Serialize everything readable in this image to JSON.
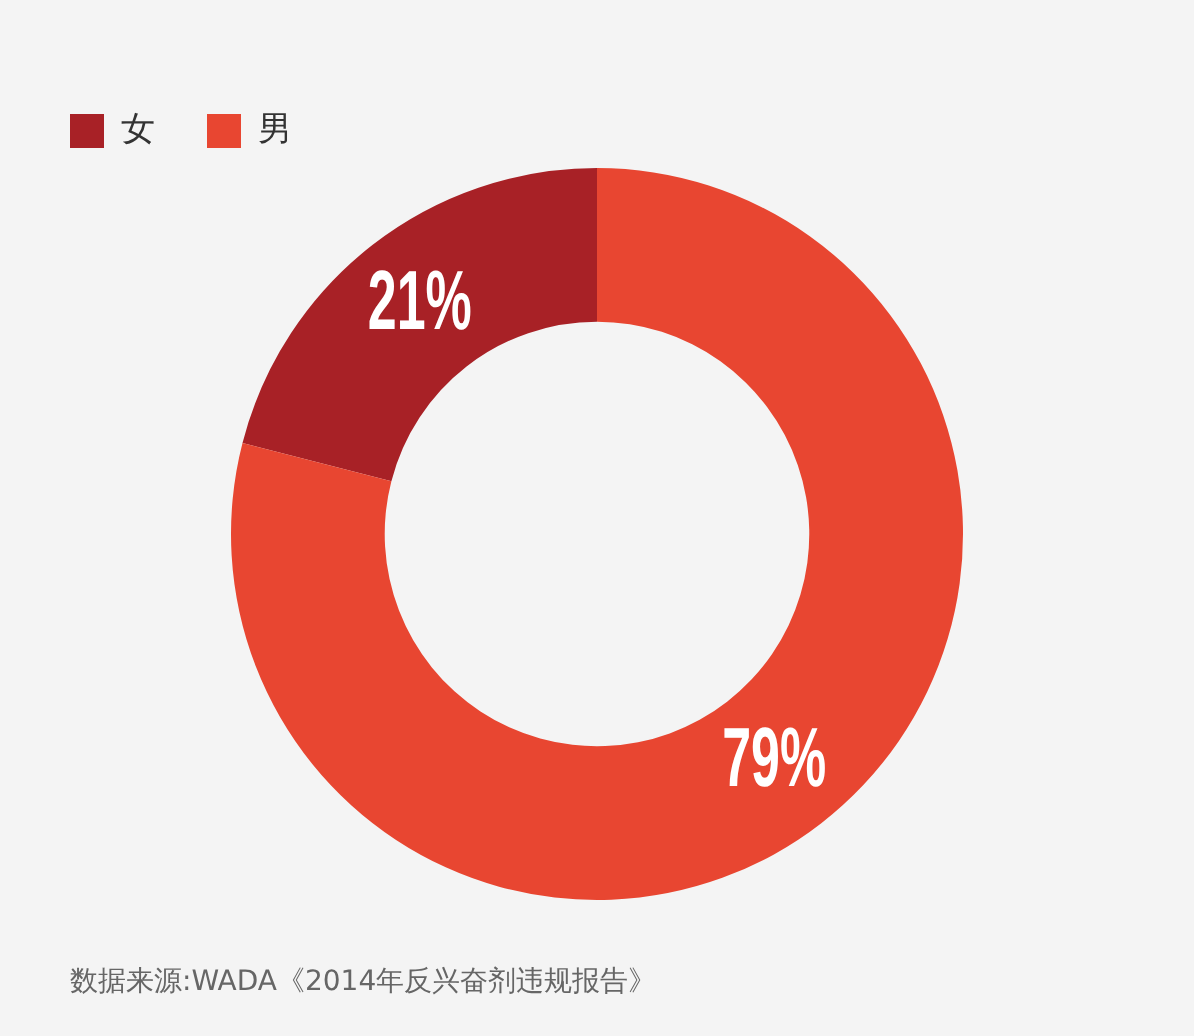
{
  "chart_data": {
    "type": "donut",
    "categories": [
      "女",
      "男"
    ],
    "values": [
      21,
      79
    ],
    "colors": [
      "#a82126",
      "#e84631"
    ],
    "value_labels": [
      "21%",
      "79%"
    ],
    "legend": "top left",
    "annotations": [
      "数据来源:WADA《2014年反兴奋剂违规报告》"
    ]
  }
}
